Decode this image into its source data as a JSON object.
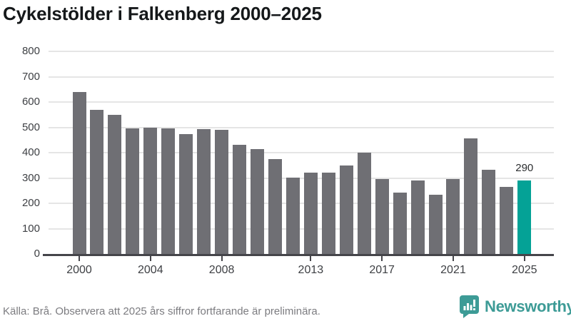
{
  "title": "Cykelstölder i Falkenberg 2000–2025",
  "source_note": "Källa: Brå. Observera att 2025 års siffror fortfarande är preliminära.",
  "branding": {
    "wordmark": "Newsworthy",
    "icon": "bar-chart-speech-bubble-icon"
  },
  "colors": {
    "bar": "#6f6f74",
    "highlight_bar": "#04a296",
    "axis": "#45454a",
    "gridline": "#e5e5e5",
    "brand_teal": "#3d9b96",
    "title_text": "#15181a",
    "tick_text": "#3e4044",
    "muted_text": "#7c7c80",
    "value_label_text": "#2c2e30"
  },
  "chart_data": {
    "type": "bar",
    "title": "Cykelstölder i Falkenberg 2000–2025",
    "categories": [
      2000,
      2001,
      2002,
      2003,
      2004,
      2005,
      2006,
      2007,
      2008,
      2009,
      2010,
      2011,
      2012,
      2013,
      2014,
      2015,
      2016,
      2017,
      2018,
      2019,
      2020,
      2021,
      2022,
      2023,
      2024,
      2025
    ],
    "values": [
      640,
      570,
      548,
      497,
      498,
      497,
      472,
      494,
      490,
      432,
      413,
      375,
      300,
      322,
      320,
      350,
      400,
      297,
      243,
      290,
      235,
      297,
      457,
      332,
      266,
      290
    ],
    "xlabel": "",
    "ylabel": "",
    "ylim": [
      0,
      800
    ],
    "y_ticks": [
      0,
      100,
      200,
      300,
      400,
      500,
      600,
      700,
      800
    ],
    "x_tick_years": [
      2000,
      2004,
      2008,
      2013,
      2017,
      2021,
      2025
    ],
    "grid": true,
    "legend": false,
    "highlight_category": 2025,
    "highlight_value_label": "290"
  }
}
